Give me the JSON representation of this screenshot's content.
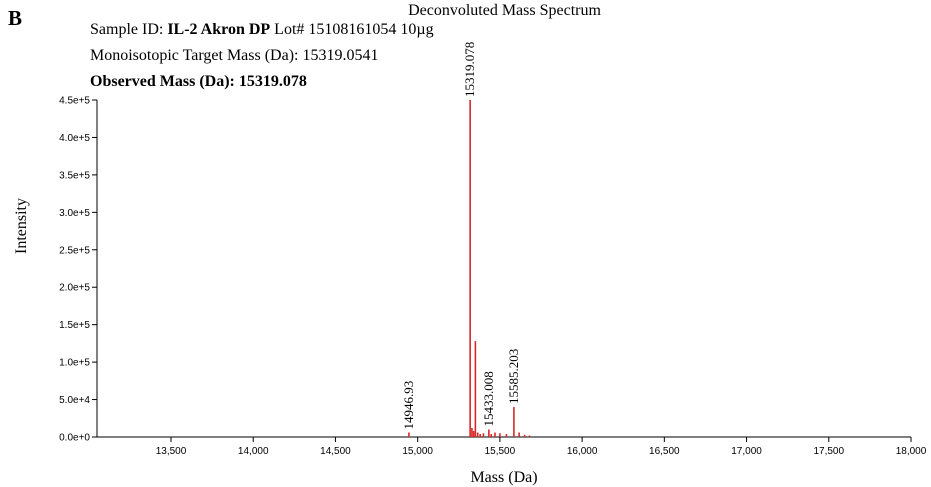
{
  "panel_label": "B",
  "header": {
    "sample_prefix": "Sample ID: ",
    "sample_id": "IL-2 Akron DP",
    "lot_text": " Lot# 15108161054 10µg",
    "target_mass_text": "Monoisotopic Target Mass (Da): 15319.0541",
    "observed_mass_text": "Observed Mass (Da): 15319.078"
  },
  "chart_data": {
    "type": "line",
    "title": "Deconvoluted Mass Spectrum",
    "xlabel": "Mass (Da)",
    "ylabel": "Intensity",
    "xlim": [
      13050,
      18000
    ],
    "ylim": [
      0,
      450000
    ],
    "x_ticks": [
      13500,
      14000,
      14500,
      15000,
      15500,
      16000,
      16500,
      17000,
      17500,
      18000
    ],
    "x_tick_labels": [
      "13,500",
      "14,000",
      "14,500",
      "15,000",
      "15,500",
      "16,000",
      "16,500",
      "17,000",
      "17,500",
      "18,000"
    ],
    "y_ticks": [
      0,
      50000,
      100000,
      150000,
      200000,
      250000,
      300000,
      350000,
      400000,
      450000
    ],
    "y_tick_labels": [
      "0.0e+0",
      "5.0e+4",
      "1.0e+5",
      "1.5e+5",
      "2.0e+5",
      "2.5e+5",
      "3.0e+5",
      "3.5e+5",
      "4.0e+5",
      "4.5e+5"
    ],
    "series_color": "#d62728",
    "peaks": [
      {
        "x": 14946.93,
        "y": 6000
      },
      {
        "x": 15319.078,
        "y": 450000
      },
      {
        "x": 15330,
        "y": 12000
      },
      {
        "x": 15340,
        "y": 8000
      },
      {
        "x": 15351,
        "y": 128000
      },
      {
        "x": 15365,
        "y": 6000
      },
      {
        "x": 15380,
        "y": 4000
      },
      {
        "x": 15400,
        "y": 5000
      },
      {
        "x": 15433.008,
        "y": 10000
      },
      {
        "x": 15447,
        "y": 4000
      },
      {
        "x": 15470,
        "y": 6000
      },
      {
        "x": 15500,
        "y": 5000
      },
      {
        "x": 15540,
        "y": 4000
      },
      {
        "x": 15585.203,
        "y": 40000
      },
      {
        "x": 15617,
        "y": 6000
      },
      {
        "x": 15650,
        "y": 3000
      },
      {
        "x": 15680,
        "y": 2000
      }
    ],
    "annotations": [
      {
        "x": 14946.93,
        "y": 6000,
        "text": "14946.93"
      },
      {
        "x": 15319.078,
        "y": 450000,
        "text": "15319.078"
      },
      {
        "x": 15433.008,
        "y": 10000,
        "text": "15433.008"
      },
      {
        "x": 15585.203,
        "y": 40000,
        "text": "15585.203"
      }
    ]
  }
}
